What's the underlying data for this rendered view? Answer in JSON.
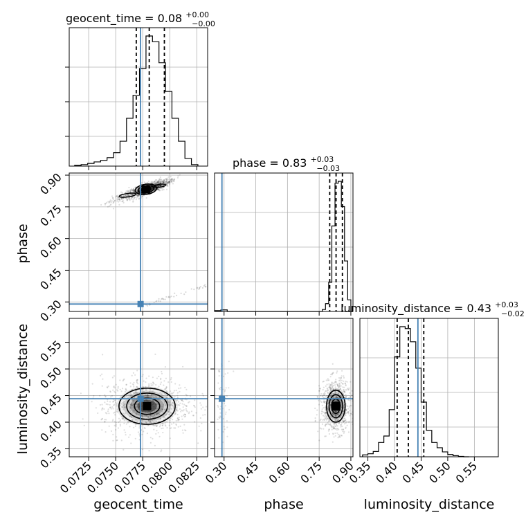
{
  "chart_data": {
    "type": "corner",
    "parameters": [
      "geocent_time",
      "phase",
      "luminosity_distance"
    ],
    "truths": {
      "geocent_time": 0.0773,
      "phase": 0.29,
      "luminosity_distance": 0.444
    },
    "titles": [
      {
        "param": "geocent_time",
        "text": "geocent_time = 0.08",
        "plus": "+0.00",
        "minus": "−0.00"
      },
      {
        "param": "phase",
        "text": "phase = 0.83",
        "plus": "+0.03",
        "minus": "−0.03"
      },
      {
        "param": "luminosity_distance",
        "text": "luminosity_distance = 0.43",
        "plus": "+0.03",
        "minus": "−0.02"
      }
    ],
    "axes": {
      "geocent_time": {
        "range": [
          0.0707,
          0.0835
        ],
        "ticks": [
          "0.0725",
          "0.0750",
          "0.0775",
          "0.0800",
          "0.0825"
        ],
        "label": "geocent_time"
      },
      "phase": {
        "range": [
          0.255,
          0.91
        ],
        "ticks": [
          "0.30",
          "0.45",
          "0.60",
          "0.75",
          "0.90"
        ],
        "label": "phase"
      },
      "luminosity_distance": {
        "range": [
          0.335,
          0.595
        ],
        "ticks": [
          "0.35",
          "0.40",
          "0.45",
          "0.50",
          "0.55"
        ],
        "label": "luminosity_distance"
      }
    },
    "histograms": {
      "geocent_time": {
        "bin_edges": [
          0.0712,
          0.0718,
          0.0724,
          0.073,
          0.0736,
          0.0742,
          0.0748,
          0.0754,
          0.076,
          0.0766,
          0.0772,
          0.0778,
          0.0784,
          0.079,
          0.0796,
          0.0802,
          0.0808,
          0.0814,
          0.082,
          0.0826
        ],
        "counts": [
          2,
          4,
          7,
          11,
          15,
          22,
          35,
          65,
          125,
          185,
          255,
          340,
          325,
          270,
          195,
          125,
          65,
          20,
          4
        ],
        "quantiles": [
          0.0769,
          0.0781,
          0.0795
        ]
      },
      "phase": {
        "bin_edges": [
          0.255,
          0.285,
          0.315,
          0.345,
          0.375,
          0.405,
          0.435,
          0.465,
          0.495,
          0.525,
          0.555,
          0.585,
          0.615,
          0.645,
          0.675,
          0.705,
          0.735,
          0.765,
          0.78,
          0.795,
          0.81,
          0.825,
          0.84,
          0.855,
          0.87,
          0.885,
          0.9
        ],
        "counts": [
          2,
          4,
          0,
          0,
          0,
          0,
          0,
          0,
          0,
          0,
          0,
          0,
          0,
          0,
          0,
          0,
          0,
          5,
          20,
          75,
          220,
          330,
          335,
          270,
          130,
          30
        ],
        "quantiles": [
          0.8,
          0.83,
          0.86
        ]
      },
      "luminosity_distance": {
        "bin_edges": [
          0.34,
          0.35,
          0.36,
          0.37,
          0.38,
          0.39,
          0.4,
          0.41,
          0.42,
          0.43,
          0.44,
          0.45,
          0.46,
          0.47,
          0.48,
          0.49,
          0.5,
          0.51,
          0.52,
          0.53,
          0.54
        ],
        "counts": [
          5,
          8,
          14,
          38,
          55,
          125,
          265,
          345,
          340,
          305,
          235,
          145,
          70,
          38,
          24,
          13,
          6,
          3,
          1,
          0
        ],
        "quantiles": [
          0.405,
          0.426,
          0.455
        ]
      }
    },
    "contours": {
      "geocent_time|phase": {
        "center": [
          0.0781,
          0.833
        ],
        "density": [
          {
            "x": 0.0778,
            "y": 0.833,
            "sx": 0.0005,
            "sy": 0.012,
            "level": 0.9
          },
          {
            "x": 0.0791,
            "y": 0.85,
            "sx": 0.0004,
            "sy": 0.01,
            "level": 0.3
          },
          {
            "x": 0.0761,
            "y": 0.805,
            "sx": 0.0006,
            "sy": 0.012,
            "level": 0.2
          }
        ]
      },
      "geocent_time|luminosity_distance": {
        "center": [
          0.0778,
          0.431
        ],
        "density": [
          {
            "x": 0.0779,
            "y": 0.43,
            "sx": 0.0013,
            "sy": 0.017,
            "level": 1.0
          }
        ]
      },
      "phase|luminosity_distance": {
        "center": [
          0.828,
          0.43
        ],
        "density": [
          {
            "x": 0.829,
            "y": 0.43,
            "sx": 0.022,
            "sy": 0.015,
            "level": 1.0
          }
        ]
      }
    },
    "truth_color": "#4682b4",
    "grid": true
  }
}
